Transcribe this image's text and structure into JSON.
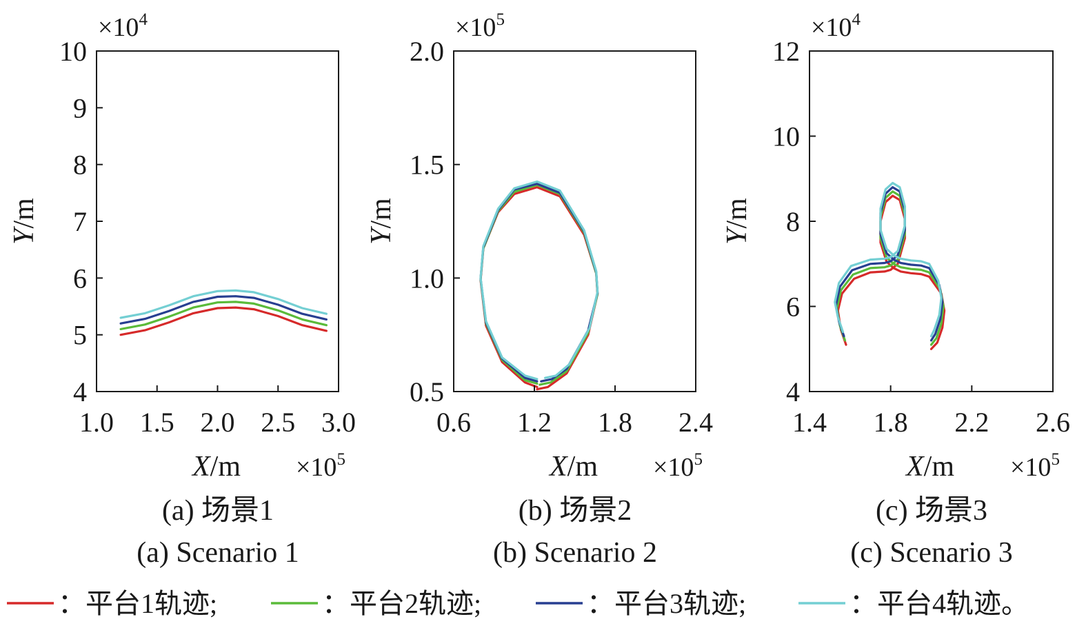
{
  "chart_data": [
    {
      "type": "line",
      "caption_cn": "(a) 场景1",
      "caption_en": "(a) Scenario 1",
      "xlabel_italic": "X",
      "xlabel_unit": "/m",
      "ylabel_italic": "Y",
      "ylabel_unit": "/m",
      "x_multiplier": "×10",
      "x_exponent": "5",
      "y_multiplier": "×10",
      "y_exponent": "4",
      "xlim": [
        1.0,
        3.0
      ],
      "ylim": [
        4,
        10
      ],
      "xticks": [
        1.0,
        1.5,
        2.0,
        2.5,
        3.0
      ],
      "xtick_labels": [
        "1.0",
        "1.5",
        "2.0",
        "2.5",
        "3.0"
      ],
      "yticks": [
        4,
        5,
        6,
        7,
        8,
        9,
        10
      ],
      "ytick_labels": [
        "4",
        "5",
        "6",
        "7",
        "8",
        "9",
        "10"
      ],
      "grid": false,
      "series": [
        {
          "ref": 0,
          "x": [
            1.2,
            1.4,
            1.6,
            1.8,
            2.0,
            2.15,
            2.3,
            2.5,
            2.7,
            2.9
          ],
          "y": [
            5.0,
            5.08,
            5.22,
            5.38,
            5.47,
            5.48,
            5.45,
            5.33,
            5.17,
            5.07
          ]
        },
        {
          "ref": 1,
          "x": [
            1.2,
            1.4,
            1.6,
            1.8,
            2.0,
            2.15,
            2.3,
            2.5,
            2.7,
            2.9
          ],
          "y": [
            5.1,
            5.18,
            5.32,
            5.48,
            5.57,
            5.58,
            5.55,
            5.43,
            5.27,
            5.17
          ]
        },
        {
          "ref": 2,
          "x": [
            1.2,
            1.4,
            1.6,
            1.8,
            2.0,
            2.15,
            2.3,
            2.5,
            2.7,
            2.9
          ],
          "y": [
            5.2,
            5.28,
            5.42,
            5.58,
            5.67,
            5.68,
            5.65,
            5.53,
            5.37,
            5.27
          ]
        },
        {
          "ref": 3,
          "x": [
            1.2,
            1.4,
            1.6,
            1.8,
            2.0,
            2.15,
            2.3,
            2.5,
            2.7,
            2.9
          ],
          "y": [
            5.3,
            5.38,
            5.52,
            5.68,
            5.77,
            5.78,
            5.75,
            5.63,
            5.47,
            5.37
          ]
        }
      ]
    },
    {
      "type": "line",
      "caption_cn": "(b) 场景2",
      "caption_en": "(b) Scenario 2",
      "xlabel_italic": "X",
      "xlabel_unit": "/m",
      "ylabel_italic": "Y",
      "ylabel_unit": "/m",
      "x_multiplier": "×10",
      "x_exponent": "5",
      "y_multiplier": "×10",
      "y_exponent": "5",
      "xlim": [
        0.6,
        2.4
      ],
      "ylim": [
        0.5,
        2.0
      ],
      "xticks": [
        0.6,
        1.2,
        1.8,
        2.4
      ],
      "xtick_labels": [
        "0.6",
        "1.2",
        "1.8",
        "2.4"
      ],
      "yticks": [
        0.5,
        1.0,
        1.5,
        2.0
      ],
      "ytick_labels": [
        "0.5",
        "1.0",
        "1.5",
        "2.0"
      ],
      "grid": false,
      "series": [
        {
          "ref": 0,
          "x": [
            1.22,
            1.13,
            0.96,
            0.84,
            0.8,
            0.82,
            0.93,
            1.05,
            1.22,
            1.39,
            1.57,
            1.66,
            1.67,
            1.6,
            1.44,
            1.3,
            1.22
          ],
          "y": [
            0.52,
            0.54,
            0.63,
            0.79,
            0.99,
            1.13,
            1.29,
            1.37,
            1.4,
            1.36,
            1.19,
            1.02,
            0.93,
            0.75,
            0.58,
            0.52,
            0.51
          ]
        },
        {
          "ref": 1,
          "x": [
            1.22,
            1.13,
            0.96,
            0.84,
            0.8,
            0.82,
            0.93,
            1.05,
            1.22,
            1.39,
            1.57,
            1.66,
            1.67,
            1.6,
            1.44,
            1.32,
            1.24
          ],
          "y": [
            0.535,
            0.55,
            0.64,
            0.8,
            0.995,
            1.13,
            1.295,
            1.38,
            1.41,
            1.37,
            1.2,
            1.02,
            0.93,
            0.76,
            0.59,
            0.54,
            0.53
          ]
        },
        {
          "ref": 2,
          "x": [
            1.22,
            1.13,
            0.96,
            0.84,
            0.8,
            0.82,
            0.93,
            1.05,
            1.22,
            1.39,
            1.57,
            1.66,
            1.67,
            1.6,
            1.44,
            1.33,
            1.25
          ],
          "y": [
            0.545,
            0.56,
            0.645,
            0.805,
            0.998,
            1.135,
            1.3,
            1.39,
            1.415,
            1.375,
            1.205,
            1.025,
            0.935,
            0.77,
            0.6,
            0.555,
            0.545
          ]
        },
        {
          "ref": 3,
          "x": [
            1.22,
            1.13,
            0.96,
            0.84,
            0.8,
            0.82,
            0.93,
            1.05,
            1.22,
            1.39,
            1.57,
            1.66,
            1.67,
            1.61,
            1.46,
            1.36,
            1.28
          ],
          "y": [
            0.555,
            0.57,
            0.65,
            0.81,
            1.0,
            1.14,
            1.305,
            1.395,
            1.425,
            1.385,
            1.21,
            1.03,
            0.94,
            0.78,
            0.62,
            0.57,
            0.56
          ]
        }
      ]
    },
    {
      "type": "line",
      "caption_cn": "(c) 场景3",
      "caption_en": "(c) Scenario 3",
      "xlabel_italic": "X",
      "xlabel_unit": "/m",
      "ylabel_italic": "Y",
      "ylabel_unit": "/m",
      "x_multiplier": "×10",
      "x_exponent": "5",
      "y_multiplier": "×10",
      "y_exponent": "4",
      "xlim": [
        1.4,
        2.6
      ],
      "ylim": [
        4,
        12
      ],
      "xticks": [
        1.4,
        1.8,
        2.2,
        2.6
      ],
      "xtick_labels": [
        "1.4",
        "1.8",
        "2.2",
        "2.6"
      ],
      "yticks": [
        4,
        6,
        8,
        10,
        12
      ],
      "ytick_labels": [
        "4",
        "6",
        "8",
        "10",
        "12"
      ],
      "grid": false,
      "series": [
        {
          "ref": 0,
          "x": [
            1.58,
            1.555,
            1.54,
            1.56,
            1.62,
            1.7,
            1.77,
            1.8,
            1.835,
            1.87,
            1.87,
            1.845,
            1.81,
            1.775,
            1.75,
            1.75,
            1.78,
            1.815,
            1.85,
            1.9,
            1.95,
            1.99,
            2.05,
            2.065,
            2.055,
            2.03,
            2.0
          ],
          "y": [
            5.1,
            5.45,
            5.9,
            6.3,
            6.65,
            6.8,
            6.82,
            6.86,
            7.0,
            7.6,
            8.05,
            8.5,
            8.6,
            8.45,
            8.0,
            7.5,
            7.05,
            6.9,
            6.82,
            6.78,
            6.76,
            6.7,
            6.3,
            5.9,
            5.5,
            5.15,
            5.0
          ]
        },
        {
          "ref": 1,
          "x": [
            1.575,
            1.55,
            1.535,
            1.555,
            1.615,
            1.7,
            1.77,
            1.8,
            1.835,
            1.87,
            1.87,
            1.845,
            1.81,
            1.775,
            1.75,
            1.75,
            1.78,
            1.815,
            1.85,
            1.9,
            1.95,
            1.99,
            2.045,
            2.06,
            2.05,
            2.025,
            2.0
          ],
          "y": [
            5.2,
            5.55,
            5.95,
            6.38,
            6.75,
            6.9,
            6.92,
            6.96,
            7.1,
            7.7,
            8.15,
            8.6,
            8.7,
            8.55,
            8.1,
            7.6,
            7.15,
            7.0,
            6.92,
            6.88,
            6.86,
            6.8,
            6.4,
            6.0,
            5.6,
            5.25,
            5.1
          ]
        },
        {
          "ref": 2,
          "x": [
            1.57,
            1.545,
            1.53,
            1.55,
            1.61,
            1.7,
            1.77,
            1.8,
            1.835,
            1.87,
            1.87,
            1.845,
            1.81,
            1.775,
            1.75,
            1.75,
            1.78,
            1.815,
            1.85,
            1.9,
            1.95,
            1.99,
            2.04,
            2.055,
            2.045,
            2.02,
            2.0
          ],
          "y": [
            5.3,
            5.65,
            6.02,
            6.46,
            6.85,
            7.0,
            7.02,
            7.06,
            7.2,
            7.8,
            8.25,
            8.7,
            8.8,
            8.65,
            8.2,
            7.7,
            7.25,
            7.1,
            7.02,
            6.98,
            6.96,
            6.9,
            6.5,
            6.1,
            5.7,
            5.35,
            5.2
          ]
        },
        {
          "ref": 3,
          "x": [
            1.565,
            1.54,
            1.525,
            1.545,
            1.605,
            1.7,
            1.77,
            1.8,
            1.835,
            1.87,
            1.87,
            1.845,
            1.81,
            1.775,
            1.75,
            1.75,
            1.78,
            1.815,
            1.85,
            1.9,
            1.95,
            1.99,
            2.035,
            2.05,
            2.04,
            2.015,
            2.0
          ],
          "y": [
            5.4,
            5.75,
            6.1,
            6.55,
            6.95,
            7.1,
            7.12,
            7.16,
            7.3,
            7.9,
            8.35,
            8.8,
            8.9,
            8.75,
            8.3,
            7.8,
            7.35,
            7.2,
            7.12,
            7.08,
            7.06,
            7.0,
            6.6,
            6.2,
            5.8,
            5.45,
            5.3
          ]
        }
      ]
    }
  ],
  "legend": {
    "items": [
      {
        "label": "：平台1轨迹;",
        "color": "#d62a2a"
      },
      {
        "label": "：平台2轨迹;",
        "color": "#5bbb3a"
      },
      {
        "label": "：平台3轨迹;",
        "color": "#283f91"
      },
      {
        "label": "：平台4轨迹。",
        "color": "#74cfd3"
      }
    ]
  }
}
